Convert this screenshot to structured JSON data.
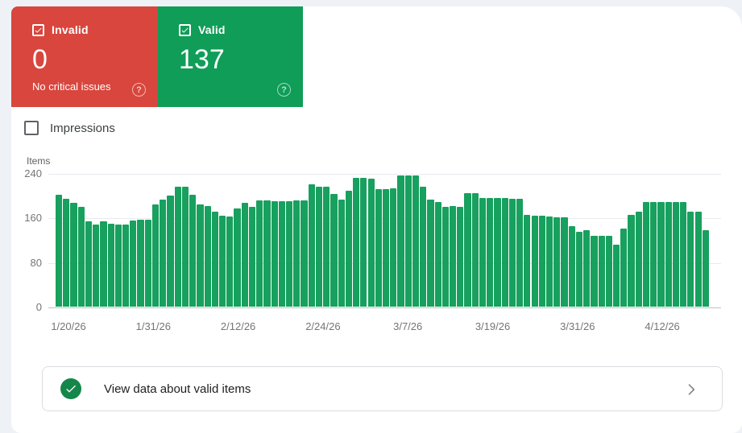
{
  "cards": {
    "invalid": {
      "label": "Invalid",
      "value": "0",
      "note": "No critical issues",
      "checked": true,
      "color": "#d8463d",
      "help_icon": "?"
    },
    "valid": {
      "label": "Valid",
      "value": "137",
      "checked": true,
      "color": "#0f9d58",
      "help_icon": "?"
    }
  },
  "impressions_toggle": {
    "label": "Impressions",
    "checked": false
  },
  "chart_data": {
    "type": "bar",
    "title": "Items",
    "ylabel": "Items",
    "ylim": [
      0,
      240
    ],
    "y_ticks": [
      240,
      160,
      80,
      0
    ],
    "grid": "horizontal",
    "bar_color": "#17a05e",
    "x_tick_labels": [
      "1/20/26",
      "1/31/26",
      "2/12/26",
      "2/24/26",
      "3/7/26",
      "3/19/26",
      "3/31/26",
      "4/12/26"
    ],
    "values": [
      201,
      194,
      186,
      180,
      153,
      147,
      153,
      149,
      148,
      148,
      154,
      156,
      156,
      183,
      192,
      199,
      216,
      216,
      201,
      183,
      181,
      170,
      164,
      162,
      177,
      186,
      180,
      191,
      191,
      190,
      190,
      190,
      191,
      191,
      220,
      216,
      216,
      203,
      192,
      208,
      231,
      231,
      230,
      211,
      211,
      212,
      235,
      235,
      235,
      216,
      193,
      188,
      180,
      181,
      180,
      204,
      204,
      195,
      195,
      195,
      195,
      194,
      194,
      165,
      164,
      163,
      162,
      160,
      160,
      145,
      135,
      137,
      127,
      127,
      127,
      111,
      140,
      165,
      171,
      188,
      188,
      188,
      188,
      188,
      188,
      170,
      170,
      137
    ]
  },
  "action_row": {
    "label": "View data about valid items",
    "icon_color": "#15864a"
  },
  "colors": {
    "page_background": "#eef1f6",
    "card_background": "#ffffff",
    "invalid_red": "#d8463d",
    "valid_green": "#0f9d58",
    "bar_green": "#17a05e",
    "border_gray": "#dadce0",
    "tick_text": "#757575"
  }
}
